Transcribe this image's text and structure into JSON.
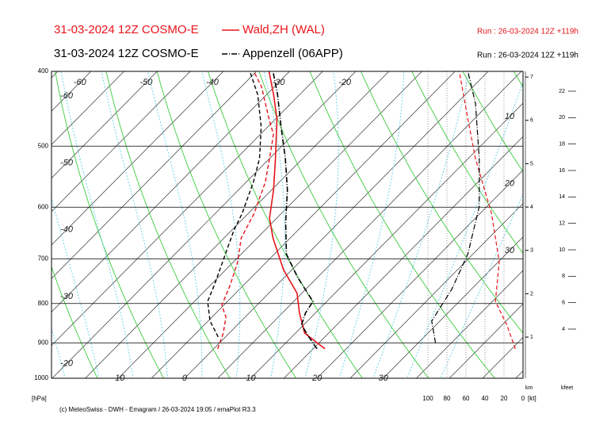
{
  "chart_data": {
    "type": "emagram",
    "stations": [
      {
        "model": "31-03-2024 12Z COSMO-E",
        "name": "Wald,ZH (WAL)",
        "run": "Run : 26-03-2024 12Z +119h",
        "color": "#e8141a",
        "temperature_dash": "",
        "dewpoint_dash": "5,3",
        "temperature": {
          "p": [
            916,
            874,
            823,
            776,
            723,
            658,
            620,
            570,
            519,
            461,
            429,
            400
          ],
          "t": [
            16.8,
            11.4,
            7.6,
            4.3,
            -1.3,
            -7.6,
            -11.1,
            -14.7,
            -19.1,
            -24.8,
            -28.9,
            -33.1
          ]
        },
        "dewpoint": {
          "p": [
            916,
            874,
            833,
            804,
            758,
            706,
            658,
            612,
            557,
            519,
            483,
            461,
            419,
            400
          ],
          "t": [
            0.6,
            -0.9,
            -2.9,
            -5.3,
            -7.0,
            -9.4,
            -12.4,
            -14.1,
            -17.1,
            -20.0,
            -23.0,
            -26.0,
            -31.9,
            -35.4
          ]
        },
        "wind_speed": {
          "p": [
            916,
            853,
            795,
            706,
            612,
            519,
            461,
            400
          ],
          "kt": [
            8,
            17,
            29,
            25,
            33,
            50,
            58,
            67
          ]
        }
      },
      {
        "model": "31-03-2024 12Z COSMO-E",
        "name": "Appenzell (06APP)",
        "run": "Run : 26-03-2024 12Z +119h",
        "color": "#000000",
        "temperature_dash": "7,2,1,2",
        "dewpoint_dash": "5,3",
        "temperature": {
          "p": [
            916,
            884,
            853,
            823,
            795,
            740,
            690,
            627,
            570,
            519,
            472,
            429,
            400
          ],
          "t": [
            15.6,
            12.6,
            9.7,
            8.5,
            7.9,
            2.0,
            -3.2,
            -8.1,
            -12.6,
            -17.6,
            -23.0,
            -28.3,
            -32.5
          ]
        },
        "dewpoint": {
          "p": [
            884,
            843,
            795,
            758,
            690,
            642,
            612,
            557,
            519,
            472,
            429,
            400
          ],
          "t": [
            -1.1,
            -4.7,
            -8.0,
            -9.4,
            -12.4,
            -14.7,
            -15.9,
            -18.9,
            -21.5,
            -26.0,
            -31.3,
            -36.0
          ]
        },
        "wind_speed": {
          "p": [
            900,
            843,
            767,
            690,
            599,
            519,
            440,
            400
          ],
          "kt": [
            92,
            96,
            75,
            58,
            46,
            46,
            50,
            58
          ]
        }
      }
    ],
    "y_label": "[hPa]",
    "log_y": true,
    "ylim": [
      1000,
      400
    ],
    "yticks": [
      400,
      500,
      600,
      700,
      800,
      900,
      1000
    ],
    "xlim": [
      -20.1,
      51.1
    ],
    "isotherm_labels": {
      "top": [
        -60,
        -50,
        -40,
        -30,
        -20
      ],
      "left": [
        -60,
        -50,
        -40,
        -30,
        -20
      ],
      "bottom": [
        -10,
        0,
        10,
        20,
        30
      ],
      "right": [
        10,
        20,
        30
      ]
    },
    "wind_label": "[kt]",
    "wind_xlim": [
      100,
      0
    ],
    "wind_xticks": [
      100,
      80,
      60,
      40,
      20,
      0
    ],
    "km_label": "km",
    "km_lim": [
      0.05,
      7.13
    ],
    "km_ticks": [
      1,
      2,
      3,
      4,
      5,
      6,
      7
    ],
    "kfeet_label": "kfeet",
    "kfeet_lim": [
      0.28,
      23.5
    ],
    "kfeet_ticks": [
      4,
      6,
      8,
      10,
      12,
      14,
      16,
      18,
      20,
      22
    ],
    "grid": true,
    "footer": "(c) MeteoSwiss - DWH - Emagram / 26-03-2024 19:05 / emaPlot R3.3"
  }
}
